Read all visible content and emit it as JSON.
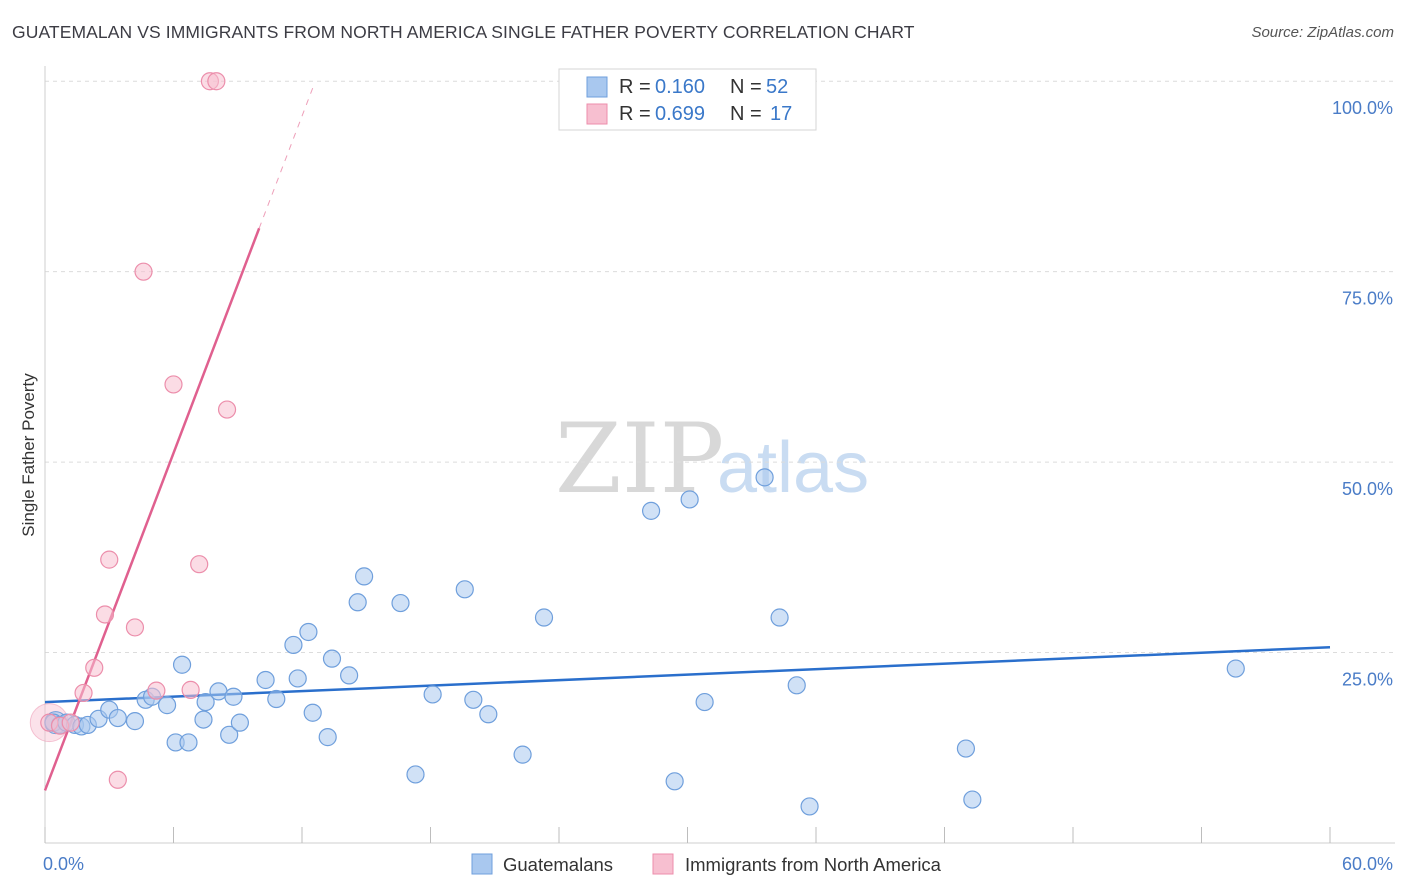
{
  "title": "GUATEMALAN VS IMMIGRANTS FROM NORTH AMERICA SINGLE FATHER POVERTY CORRELATION CHART",
  "source": "Source: ZipAtlas.com",
  "watermark": {
    "zip": "ZIP",
    "atlas": "atlas"
  },
  "legend": {
    "r_label": "R =",
    "n_label": "N =",
    "rows": [
      {
        "r": "0.160",
        "n": "52"
      },
      {
        "r": "0.699",
        "n": "17"
      }
    ]
  },
  "colors": {
    "blue_fill": "#a9c8ef",
    "blue_stroke": "#6f9fdc",
    "blue_line": "#2a6fcc",
    "pink_fill": "#f7bfd0",
    "pink_stroke": "#ec8eab",
    "pink_line": "#e0608f"
  },
  "chart_data": {
    "type": "scatter",
    "title": "GUATEMALAN VS IMMIGRANTS FROM NORTH AMERICA SINGLE FATHER POVERTY CORRELATION CHART",
    "ylabel": "Single Father Poverty",
    "xlabel": "",
    "xlim": [
      0,
      60
    ],
    "ylim": [
      0,
      102
    ],
    "x_tick_labels": [
      "0.0%",
      "60.0%"
    ],
    "y_ticks": [
      25,
      50,
      75,
      100
    ],
    "y_tick_labels": [
      "25.0%",
      "50.0%",
      "75.0%",
      "100.0%"
    ],
    "series": [
      {
        "name": "Guatemalans",
        "color": "#a9c8ef",
        "x": [
          0.4,
          0.7,
          1.0,
          1.4,
          1.7,
          2.0,
          2.5,
          3.0,
          3.4,
          4.2,
          4.7,
          5.0,
          5.7,
          6.1,
          6.4,
          6.7,
          7.4,
          7.5,
          8.1,
          8.6,
          8.8,
          9.1,
          10.3,
          10.8,
          11.6,
          11.8,
          12.3,
          12.5,
          13.2,
          13.4,
          14.2,
          14.6,
          14.9,
          16.6,
          17.3,
          18.1,
          19.6,
          20.0,
          20.7,
          22.3,
          23.3,
          28.3,
          29.4,
          30.1,
          30.8,
          34.3,
          35.1,
          35.7,
          33.6,
          43.0,
          43.3,
          55.6
        ],
        "y": [
          15.8,
          15.5,
          15.8,
          15.5,
          15.3,
          15.5,
          16.3,
          17.5,
          16.4,
          16.0,
          18.8,
          19.2,
          18.1,
          13.2,
          23.4,
          13.2,
          16.2,
          18.5,
          19.9,
          14.2,
          19.2,
          15.8,
          21.4,
          18.9,
          26.0,
          21.6,
          27.7,
          17.1,
          13.9,
          24.2,
          22.0,
          31.6,
          35.0,
          31.5,
          9.0,
          19.5,
          33.3,
          18.8,
          16.9,
          11.6,
          29.6,
          43.6,
          8.1,
          45.1,
          18.5,
          29.6,
          20.7,
          4.8,
          48.0,
          12.4,
          5.7,
          22.9
        ]
      },
      {
        "name": "Immigrants from North America",
        "color": "#f7bfd0",
        "x": [
          0.2,
          0.7,
          1.2,
          1.8,
          2.3,
          2.8,
          3.0,
          3.4,
          4.2,
          4.6,
          5.2,
          6.0,
          6.8,
          7.2,
          7.7,
          8.0,
          8.5
        ],
        "y": [
          15.8,
          15.4,
          15.8,
          19.7,
          23.0,
          30.0,
          37.2,
          8.3,
          28.3,
          75.0,
          20.0,
          60.2,
          20.1,
          36.6,
          100.0,
          100.0,
          56.9
        ]
      }
    ],
    "trend_lines": [
      {
        "series": "Guatemalans",
        "x": [
          0,
          60
        ],
        "y": [
          18.5,
          25.7
        ]
      },
      {
        "series": "Immigrants from North America",
        "x": [
          0,
          10.0
        ],
        "y": [
          6.9,
          80.7
        ],
        "dashed_extension_x": [
          10.0,
          12.5
        ],
        "dashed_extension_y": [
          80.7,
          99.1
        ]
      }
    ]
  }
}
